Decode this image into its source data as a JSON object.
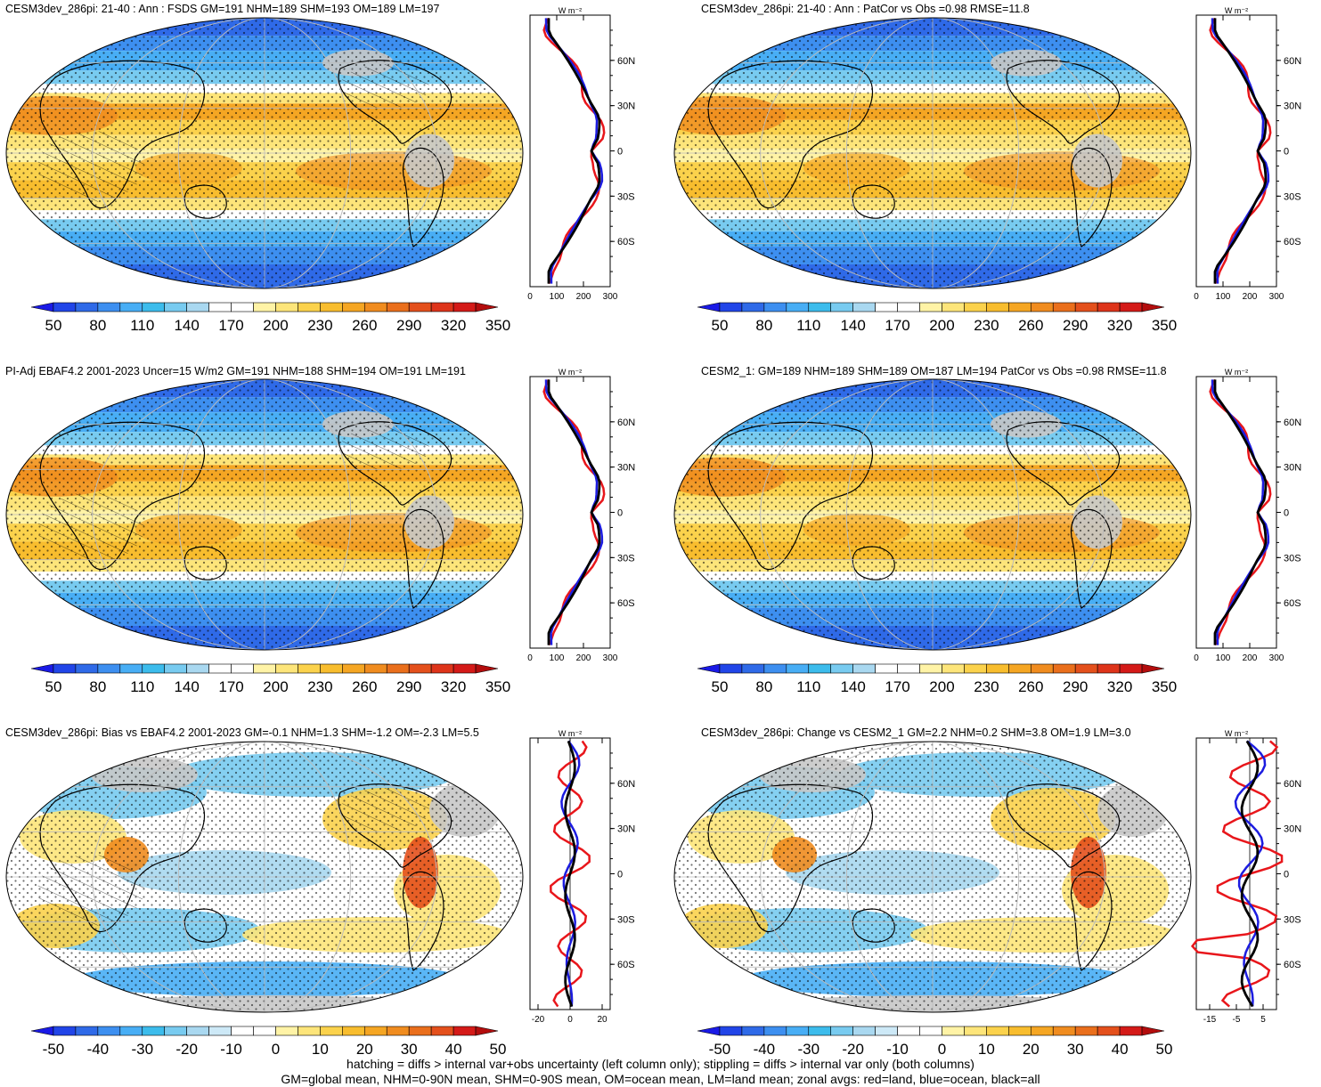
{
  "panels": [
    {
      "title": "CESM3dev_286pi: 21-40 : Ann : FSDS GM=191 NHM=189 SHM=193 OM=189 LM=197",
      "kind": "abs",
      "cbar_labels": [
        "50",
        "80",
        "110",
        "140",
        "170",
        "200",
        "230",
        "260",
        "290",
        "320",
        "350"
      ],
      "profile_xticks": [
        "0",
        "100",
        "200",
        "300"
      ],
      "profile_xrange": [
        0,
        300
      ],
      "hatch": true,
      "lat_labels": [
        "60N",
        "30N",
        "0",
        "30S",
        "60S"
      ],
      "unit_label": "W m⁻²"
    },
    {
      "title": "CESM3dev_286pi: 21-40 : Ann : PatCor vs Obs =0.98 RMSE=11.8",
      "kind": "abs",
      "cbar_labels": [
        "50",
        "80",
        "110",
        "140",
        "170",
        "200",
        "230",
        "260",
        "290",
        "320",
        "350"
      ],
      "profile_xticks": [
        "0",
        "100",
        "200",
        "300"
      ],
      "profile_xrange": [
        0,
        300
      ],
      "hatch": false,
      "lat_labels": [
        "60N",
        "30N",
        "0",
        "30S",
        "60S"
      ],
      "unit_label": "W m⁻²"
    },
    {
      "title": "PI-Adj EBAF4.2 2001-2023 Uncer=15 W/m2 GM=191 NHM=188 SHM=194 OM=191 LM=191",
      "kind": "abs",
      "cbar_labels": [
        "50",
        "80",
        "110",
        "140",
        "170",
        "200",
        "230",
        "260",
        "290",
        "320",
        "350"
      ],
      "profile_xticks": [
        "0",
        "100",
        "200",
        "300"
      ],
      "profile_xrange": [
        0,
        300
      ],
      "hatch": true,
      "lat_labels": [
        "60N",
        "30N",
        "0",
        "30S",
        "60S"
      ],
      "unit_label": "W m⁻²"
    },
    {
      "title": "CESM2_1: GM=189 NHM=189 SHM=189 OM=187 LM=194 PatCor vs Obs =0.98 RMSE=11.8",
      "kind": "abs",
      "cbar_labels": [
        "50",
        "80",
        "110",
        "140",
        "170",
        "200",
        "230",
        "260",
        "290",
        "320",
        "350"
      ],
      "profile_xticks": [
        "0",
        "100",
        "200",
        "300"
      ],
      "profile_xrange": [
        0,
        300
      ],
      "hatch": false,
      "lat_labels": [
        "60N",
        "30N",
        "0",
        "30S",
        "60S"
      ],
      "unit_label": "W m⁻²"
    },
    {
      "title": "CESM3dev_286pi: Bias vs EBAF4.2 2001-2023 GM=-0.1 NHM=1.3 SHM=-1.2 OM=-2.3 LM=5.5",
      "kind": "diff",
      "cbar_labels": [
        "-50",
        "-40",
        "-30",
        "-20",
        "-10",
        "0",
        "10",
        "20",
        "30",
        "40",
        "50"
      ],
      "profile_xticks": [
        "-20",
        "0",
        "20"
      ],
      "profile_xrange": [
        -25,
        25
      ],
      "hatch": true,
      "lat_labels": [
        "60N",
        "30N",
        "0",
        "30S",
        "60S"
      ],
      "unit_label": "W m⁻²"
    },
    {
      "title": "CESM3dev_286pi: Change vs CESM2_1 GM=2.2 NHM=0.2 SHM=3.8 OM=1.9 LM=3.0",
      "kind": "diff",
      "cbar_labels": [
        "-50",
        "-40",
        "-30",
        "-20",
        "-10",
        "0",
        "10",
        "20",
        "30",
        "40",
        "50"
      ],
      "profile_xticks": [
        "-15",
        "-5",
        "5"
      ],
      "profile_xrange": [
        -20,
        10
      ],
      "hatch": false,
      "lat_labels": [
        "60N",
        "30N",
        "0",
        "30S",
        "60S"
      ],
      "unit_label": "W m⁻²"
    }
  ],
  "colors": {
    "abs_scale": [
      "#1a1ae6",
      "#2145e8",
      "#2f6ae8",
      "#3d8ff0",
      "#48aef5",
      "#3cbcec",
      "#78cbf0",
      "#a9d8f0",
      "#ffffff",
      "#ffffff",
      "#fff3a6",
      "#fde57a",
      "#fbd24c",
      "#f8bd2e",
      "#f5a623",
      "#f08c1f",
      "#ea6f1c",
      "#e4501c",
      "#de341a",
      "#d41a18",
      "#b30d0d"
    ],
    "diff_scale": [
      "#1a1ae6",
      "#2145e8",
      "#2f6ae8",
      "#3d8ff0",
      "#48aef5",
      "#3cbcec",
      "#78cbf0",
      "#a9d8f0",
      "#cde9f7",
      "#ffffff",
      "#ffffff",
      "#fff3a6",
      "#fde57a",
      "#fbd24c",
      "#f8bd2e",
      "#f5a623",
      "#f08c1f",
      "#ea6f1c",
      "#e4501c",
      "#d41a18",
      "#b30d0d"
    ],
    "land_line": "#e8161b",
    "ocean_line": "#1c1ce0",
    "all_line": "#000000",
    "missing": "#c8c8c8"
  },
  "footnotes": [
    "hatching = diffs > internal var+obs uncertainty (left column only); stippling = diffs > internal var only (both columns)",
    "GM=global mean, NHM=0-90N mean, SHM=0-90S mean, OM=ocean mean, LM=land mean; zonal avgs: red=land, blue=ocean, black=all"
  ]
}
